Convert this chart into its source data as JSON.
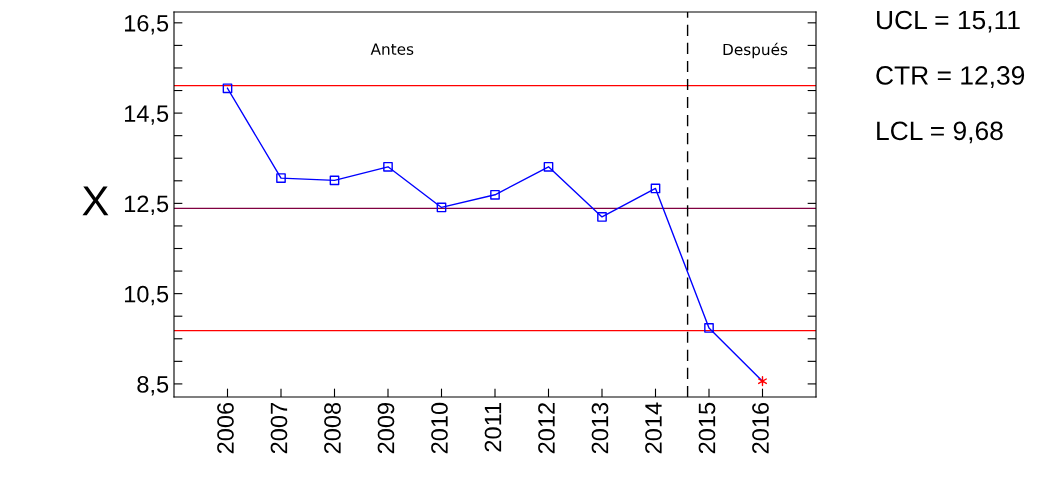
{
  "chart_data": {
    "type": "line",
    "ylabel": "X",
    "x": [
      2006,
      2007,
      2008,
      2009,
      2010,
      2011,
      2012,
      2013,
      2014,
      2015,
      2016
    ],
    "series": [
      {
        "color": "#0000ff",
        "marker": "none",
        "values": [
          15.05,
          13.06,
          13.01,
          13.31,
          12.41,
          12.69,
          13.31,
          12.2,
          12.83,
          9.74,
          8.56
        ]
      },
      {
        "type": "scatter",
        "color": "#0000ff",
        "marker": "square",
        "x": [
          2006,
          2007,
          2008,
          2009,
          2010,
          2011,
          2012,
          2013,
          2014,
          2015
        ],
        "values": [
          15.05,
          13.06,
          13.01,
          13.31,
          12.41,
          12.69,
          13.31,
          12.2,
          12.83,
          9.74
        ]
      },
      {
        "type": "scatter",
        "color": "#ff0000",
        "marker": "cross",
        "x": [
          2016
        ],
        "values": [
          8.56
        ]
      }
    ],
    "xlim": [
      2005,
      2017
    ],
    "xticks": [
      2006,
      2007,
      2008,
      2009,
      2010,
      2011,
      2012,
      2013,
      2014,
      2015,
      2016
    ],
    "ylim": [
      8.21,
      16.74
    ],
    "yticks": [
      {
        "value": 8.5,
        "label": "8,5"
      },
      {
        "value": 9,
        "label": null
      },
      {
        "value": 9.5,
        "label": null
      },
      {
        "value": 10,
        "label": null
      },
      {
        "value": 10.5,
        "label": "10,5"
      },
      {
        "value": 11,
        "label": null
      },
      {
        "value": 11.5,
        "label": null
      },
      {
        "value": 12,
        "label": null
      },
      {
        "value": 12.5,
        "label": "12,5"
      },
      {
        "value": 13,
        "label": null
      },
      {
        "value": 13.5,
        "label": null
      },
      {
        "value": 14,
        "label": null
      },
      {
        "value": 14.5,
        "label": "14,5"
      },
      {
        "value": 15,
        "label": null
      },
      {
        "value": 15.5,
        "label": null
      },
      {
        "value": 16,
        "label": null
      },
      {
        "value": 16.5,
        "label": "16,5"
      }
    ],
    "ref_lines": [
      {
        "axis": "y",
        "value": 15.11,
        "color": "#ff0000",
        "line_style": "solid"
      },
      {
        "axis": "y",
        "value": 12.39,
        "color": "#800040",
        "line_style": "solid"
      },
      {
        "axis": "y",
        "value": 9.68,
        "color": "#ff0000",
        "line_style": "solid"
      },
      {
        "axis": "x",
        "value": 2014.6,
        "color": "#000000",
        "line_style": "dashed"
      }
    ],
    "annotations": [
      "Antes",
      "Después",
      "UCL = 15,11",
      "CTR = 12,39",
      "LCL = 9,68"
    ],
    "grid": false
  }
}
